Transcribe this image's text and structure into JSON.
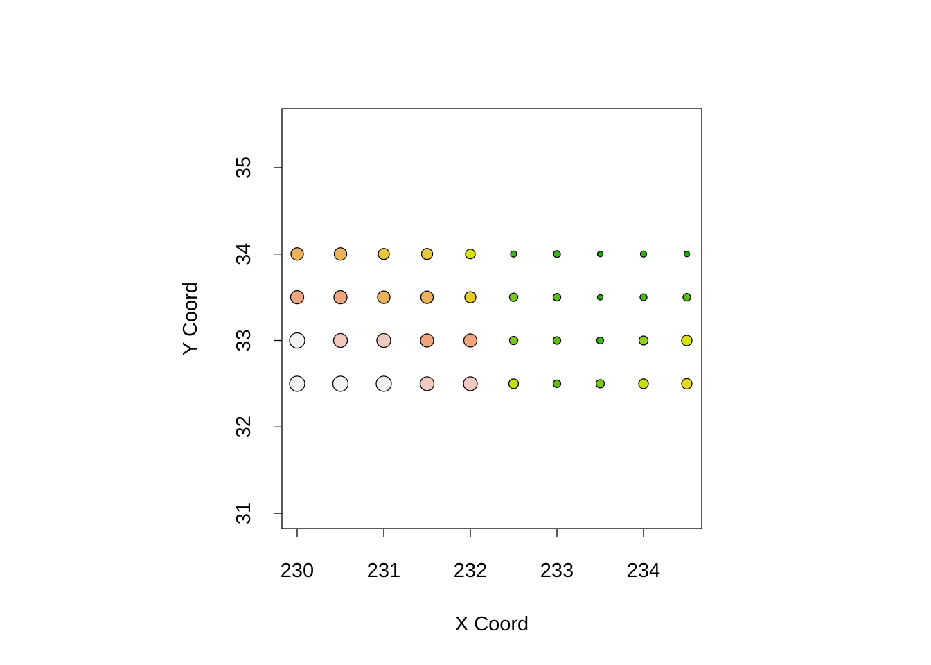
{
  "chart_data": {
    "type": "scatter",
    "xlabel": "X Coord",
    "ylabel": "Y Coord",
    "x": [
      230,
      230.5,
      231,
      231.5,
      232,
      232.5,
      233,
      233.5,
      234,
      234.5,
      230,
      230.5,
      231,
      231.5,
      232,
      232.5,
      233,
      233.5,
      234,
      234.5,
      230,
      230.5,
      231,
      231.5,
      232,
      232.5,
      233,
      233.5,
      234,
      234.5,
      230,
      230.5,
      231,
      231.5,
      232,
      232.5,
      233,
      233.5,
      234,
      234.5
    ],
    "y": [
      34,
      34,
      34,
      34,
      34,
      34,
      34,
      34,
      34,
      34,
      33.5,
      33.5,
      33.5,
      33.5,
      33.5,
      33.5,
      33.5,
      33.5,
      33.5,
      33.5,
      33,
      33,
      33,
      33,
      33,
      33,
      33,
      33,
      33,
      33,
      32.5,
      32.5,
      32.5,
      32.5,
      32.5,
      32.5,
      32.5,
      32.5,
      32.5,
      32.5
    ],
    "sizes": [
      9,
      9,
      8,
      8,
      7,
      4.5,
      5,
      4,
      4.5,
      4,
      9.5,
      9.5,
      9,
      9,
      8,
      6,
      5.5,
      4,
      5,
      5.5,
      11,
      10,
      10,
      9.5,
      9.5,
      6,
      5.5,
      5,
      6.5,
      7.5,
      11,
      11,
      11,
      10,
      10,
      7,
      5.5,
      6,
      7,
      7.5
    ],
    "colors": [
      "#EBB25E",
      "#EBB25E",
      "#E6C83A",
      "#E6C83A",
      "#D9E00F",
      "#3CB41B",
      "#3CB41B",
      "#1AAD0A",
      "#2EAE0C",
      "#1AAD0A",
      "#EDA67F",
      "#EDA67F",
      "#EBB25E",
      "#EBB25E",
      "#E6CC28",
      "#7CC81A",
      "#5BBE12",
      "#2EAE0C",
      "#4DB80F",
      "#5BBE12",
      "#F2F2F2",
      "#F0C9C0",
      "#F0C9C0",
      "#EDA67F",
      "#EDA67F",
      "#7CC81A",
      "#5BBE12",
      "#3CB41B",
      "#8FD01A",
      "#D9E00F",
      "#F2F2F2",
      "#F2F2F2",
      "#F2F2F2",
      "#F0C9C0",
      "#F0C9C0",
      "#C6DC0F",
      "#5BBE12",
      "#7CC81A",
      "#C6DC0F",
      "#E6D81E"
    ],
    "xlim": [
      229.824,
      234.672
    ],
    "ylim": [
      30.824,
      35.681
    ],
    "xticks": [
      230,
      231,
      232,
      233,
      234
    ],
    "yticks": [
      31,
      32,
      33,
      34,
      35
    ]
  }
}
